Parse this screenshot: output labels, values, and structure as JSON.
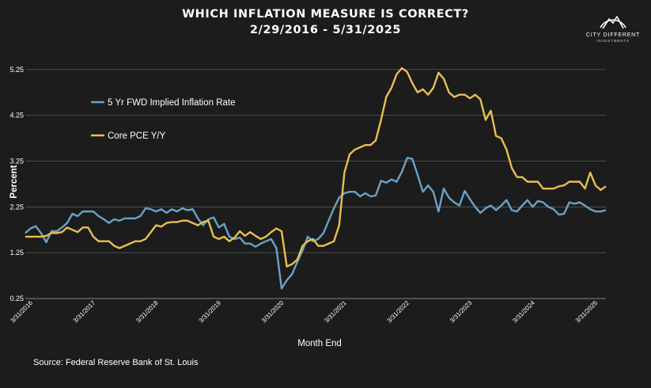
{
  "title": "WHICH INFLATION MEASURE IS CORRECT?",
  "subtitle": "2/29/2016 - 5/31/2025",
  "brand": {
    "name": "CITY DIFFERENT",
    "tagline": "INVESTMENTS"
  },
  "source": "Source: Federal Reserve Bank of St. Louis",
  "colors": {
    "background": "#1c1c1c",
    "grid": "#5a5a5a",
    "series_blue": "#6aa2c8",
    "series_gold": "#e8c04e"
  },
  "chart_data": {
    "type": "line",
    "xlabel": "Month End",
    "ylabel": "Percent",
    "ylim": [
      0.25,
      5.35
    ],
    "yticks": [
      0.25,
      1.25,
      2.25,
      3.25,
      4.25,
      5.25
    ],
    "ytick_labels": [
      "0.25",
      "1.25",
      "2.25",
      "3.25",
      "4.25",
      "5.25"
    ],
    "x_start": "2016-02",
    "x_end": "2025-05",
    "xticks": [
      "2016-03",
      "2017-03",
      "2018-03",
      "2019-03",
      "2020-03",
      "2021-03",
      "2022-03",
      "2023-03",
      "2024-03",
      "2025-03"
    ],
    "xtick_labels": [
      "3/31/2016",
      "3/31/2017",
      "3/31/2018",
      "3/31/2019",
      "3/31/2020",
      "3/31/2021",
      "3/31/2022",
      "3/31/2023",
      "3/31/2024",
      "3/31/2025"
    ],
    "grid": "horizontal",
    "legend_position": "upper-left",
    "series": [
      {
        "name": "5 Yr FWD Implied Inflation Rate",
        "color": "#6aa2c8",
        "points": [
          [
            "2016-02",
            1.68
          ],
          [
            "2016-03",
            1.78
          ],
          [
            "2016-04",
            1.83
          ],
          [
            "2016-05",
            1.68
          ],
          [
            "2016-06",
            1.48
          ],
          [
            "2016-07",
            1.72
          ],
          [
            "2016-08",
            1.72
          ],
          [
            "2016-09",
            1.8
          ],
          [
            "2016-10",
            1.9
          ],
          [
            "2016-11",
            2.1
          ],
          [
            "2016-12",
            2.05
          ],
          [
            "2017-01",
            2.15
          ],
          [
            "2017-02",
            2.15
          ],
          [
            "2017-03",
            2.15
          ],
          [
            "2017-04",
            2.05
          ],
          [
            "2017-05",
            1.98
          ],
          [
            "2017-06",
            1.9
          ],
          [
            "2017-07",
            1.98
          ],
          [
            "2017-08",
            1.95
          ],
          [
            "2017-09",
            2.0
          ],
          [
            "2017-10",
            2.0
          ],
          [
            "2017-11",
            2.0
          ],
          [
            "2017-12",
            2.05
          ],
          [
            "2018-01",
            2.22
          ],
          [
            "2018-02",
            2.2
          ],
          [
            "2018-03",
            2.15
          ],
          [
            "2018-04",
            2.2
          ],
          [
            "2018-05",
            2.12
          ],
          [
            "2018-06",
            2.2
          ],
          [
            "2018-07",
            2.15
          ],
          [
            "2018-08",
            2.22
          ],
          [
            "2018-09",
            2.18
          ],
          [
            "2018-10",
            2.2
          ],
          [
            "2018-11",
            2.0
          ],
          [
            "2018-12",
            1.85
          ],
          [
            "2019-01",
            1.98
          ],
          [
            "2019-02",
            2.02
          ],
          [
            "2019-03",
            1.8
          ],
          [
            "2019-04",
            1.88
          ],
          [
            "2019-05",
            1.6
          ],
          [
            "2019-06",
            1.55
          ],
          [
            "2019-07",
            1.58
          ],
          [
            "2019-08",
            1.45
          ],
          [
            "2019-09",
            1.45
          ],
          [
            "2019-10",
            1.38
          ],
          [
            "2019-11",
            1.45
          ],
          [
            "2019-12",
            1.5
          ],
          [
            "2020-01",
            1.55
          ],
          [
            "2020-02",
            1.35
          ],
          [
            "2020-03",
            0.47
          ],
          [
            "2020-04",
            0.65
          ],
          [
            "2020-05",
            0.78
          ],
          [
            "2020-06",
            1.05
          ],
          [
            "2020-07",
            1.3
          ],
          [
            "2020-08",
            1.6
          ],
          [
            "2020-09",
            1.5
          ],
          [
            "2020-10",
            1.55
          ],
          [
            "2020-11",
            1.68
          ],
          [
            "2020-12",
            1.95
          ],
          [
            "2021-01",
            2.22
          ],
          [
            "2021-02",
            2.45
          ],
          [
            "2021-03",
            2.55
          ],
          [
            "2021-04",
            2.58
          ],
          [
            "2021-05",
            2.58
          ],
          [
            "2021-06",
            2.48
          ],
          [
            "2021-07",
            2.55
          ],
          [
            "2021-08",
            2.48
          ],
          [
            "2021-09",
            2.5
          ],
          [
            "2021-10",
            2.82
          ],
          [
            "2021-11",
            2.78
          ],
          [
            "2021-12",
            2.85
          ],
          [
            "2022-01",
            2.8
          ],
          [
            "2022-02",
            3.02
          ],
          [
            "2022-03",
            3.32
          ],
          [
            "2022-04",
            3.3
          ],
          [
            "2022-05",
            2.95
          ],
          [
            "2022-06",
            2.58
          ],
          [
            "2022-07",
            2.72
          ],
          [
            "2022-08",
            2.58
          ],
          [
            "2022-09",
            2.15
          ],
          [
            "2022-10",
            2.65
          ],
          [
            "2022-11",
            2.45
          ],
          [
            "2022-12",
            2.35
          ],
          [
            "2023-01",
            2.28
          ],
          [
            "2023-02",
            2.6
          ],
          [
            "2023-03",
            2.42
          ],
          [
            "2023-04",
            2.25
          ],
          [
            "2023-05",
            2.12
          ],
          [
            "2023-06",
            2.22
          ],
          [
            "2023-07",
            2.28
          ],
          [
            "2023-08",
            2.18
          ],
          [
            "2023-09",
            2.28
          ],
          [
            "2023-10",
            2.4
          ],
          [
            "2023-11",
            2.18
          ],
          [
            "2023-12",
            2.15
          ],
          [
            "2024-01",
            2.28
          ],
          [
            "2024-02",
            2.4
          ],
          [
            "2024-03",
            2.25
          ],
          [
            "2024-04",
            2.38
          ],
          [
            "2024-05",
            2.35
          ],
          [
            "2024-06",
            2.25
          ],
          [
            "2024-07",
            2.2
          ],
          [
            "2024-08",
            2.08
          ],
          [
            "2024-09",
            2.1
          ],
          [
            "2024-10",
            2.35
          ],
          [
            "2024-11",
            2.32
          ],
          [
            "2024-12",
            2.35
          ],
          [
            "2025-01",
            2.28
          ],
          [
            "2025-02",
            2.2
          ],
          [
            "2025-03",
            2.15
          ],
          [
            "2025-04",
            2.15
          ],
          [
            "2025-05",
            2.18
          ]
        ]
      },
      {
        "name": "Core PCE Y/Y",
        "color": "#e8c04e",
        "points": [
          [
            "2016-02",
            1.6
          ],
          [
            "2016-03",
            1.6
          ],
          [
            "2016-04",
            1.6
          ],
          [
            "2016-05",
            1.6
          ],
          [
            "2016-06",
            1.62
          ],
          [
            "2016-07",
            1.68
          ],
          [
            "2016-08",
            1.68
          ],
          [
            "2016-09",
            1.7
          ],
          [
            "2016-10",
            1.8
          ],
          [
            "2016-11",
            1.75
          ],
          [
            "2016-12",
            1.7
          ],
          [
            "2017-01",
            1.8
          ],
          [
            "2017-02",
            1.8
          ],
          [
            "2017-03",
            1.6
          ],
          [
            "2017-04",
            1.5
          ],
          [
            "2017-05",
            1.5
          ],
          [
            "2017-06",
            1.5
          ],
          [
            "2017-07",
            1.4
          ],
          [
            "2017-08",
            1.35
          ],
          [
            "2017-09",
            1.4
          ],
          [
            "2017-10",
            1.45
          ],
          [
            "2017-11",
            1.5
          ],
          [
            "2017-12",
            1.5
          ],
          [
            "2018-01",
            1.55
          ],
          [
            "2018-02",
            1.7
          ],
          [
            "2018-03",
            1.85
          ],
          [
            "2018-04",
            1.82
          ],
          [
            "2018-05",
            1.9
          ],
          [
            "2018-06",
            1.92
          ],
          [
            "2018-07",
            1.92
          ],
          [
            "2018-08",
            1.95
          ],
          [
            "2018-09",
            1.95
          ],
          [
            "2018-10",
            1.9
          ],
          [
            "2018-11",
            1.85
          ],
          [
            "2018-12",
            1.92
          ],
          [
            "2019-01",
            1.95
          ],
          [
            "2019-02",
            1.6
          ],
          [
            "2019-03",
            1.55
          ],
          [
            "2019-04",
            1.6
          ],
          [
            "2019-05",
            1.5
          ],
          [
            "2019-06",
            1.58
          ],
          [
            "2019-07",
            1.72
          ],
          [
            "2019-08",
            1.62
          ],
          [
            "2019-09",
            1.7
          ],
          [
            "2019-10",
            1.62
          ],
          [
            "2019-11",
            1.55
          ],
          [
            "2019-12",
            1.6
          ],
          [
            "2020-01",
            1.7
          ],
          [
            "2020-02",
            1.78
          ],
          [
            "2020-03",
            1.72
          ],
          [
            "2020-04",
            0.95
          ],
          [
            "2020-05",
            1.0
          ],
          [
            "2020-06",
            1.1
          ],
          [
            "2020-07",
            1.4
          ],
          [
            "2020-08",
            1.5
          ],
          [
            "2020-09",
            1.55
          ],
          [
            "2020-10",
            1.4
          ],
          [
            "2020-11",
            1.4
          ],
          [
            "2020-12",
            1.45
          ],
          [
            "2021-01",
            1.5
          ],
          [
            "2021-02",
            1.85
          ],
          [
            "2021-03",
            3.0
          ],
          [
            "2021-04",
            3.4
          ],
          [
            "2021-05",
            3.5
          ],
          [
            "2021-06",
            3.55
          ],
          [
            "2021-07",
            3.6
          ],
          [
            "2021-08",
            3.6
          ],
          [
            "2021-09",
            3.7
          ],
          [
            "2021-10",
            4.15
          ],
          [
            "2021-11",
            4.65
          ],
          [
            "2021-12",
            4.85
          ],
          [
            "2022-01",
            5.15
          ],
          [
            "2022-02",
            5.28
          ],
          [
            "2022-03",
            5.2
          ],
          [
            "2022-04",
            4.95
          ],
          [
            "2022-05",
            4.75
          ],
          [
            "2022-06",
            4.82
          ],
          [
            "2022-07",
            4.7
          ],
          [
            "2022-08",
            4.85
          ],
          [
            "2022-09",
            5.18
          ],
          [
            "2022-10",
            5.05
          ],
          [
            "2022-11",
            4.75
          ],
          [
            "2022-12",
            4.65
          ],
          [
            "2023-01",
            4.7
          ],
          [
            "2023-02",
            4.7
          ],
          [
            "2023-03",
            4.62
          ],
          [
            "2023-04",
            4.7
          ],
          [
            "2023-05",
            4.6
          ],
          [
            "2023-06",
            4.15
          ],
          [
            "2023-07",
            4.35
          ],
          [
            "2023-08",
            3.8
          ],
          [
            "2023-09",
            3.75
          ],
          [
            "2023-10",
            3.5
          ],
          [
            "2023-11",
            3.1
          ],
          [
            "2023-12",
            2.9
          ],
          [
            "2024-01",
            2.9
          ],
          [
            "2024-02",
            2.8
          ],
          [
            "2024-03",
            2.8
          ],
          [
            "2024-04",
            2.8
          ],
          [
            "2024-05",
            2.65
          ],
          [
            "2024-06",
            2.65
          ],
          [
            "2024-07",
            2.65
          ],
          [
            "2024-08",
            2.7
          ],
          [
            "2024-09",
            2.72
          ],
          [
            "2024-10",
            2.8
          ],
          [
            "2024-11",
            2.8
          ],
          [
            "2024-12",
            2.8
          ],
          [
            "2025-01",
            2.65
          ],
          [
            "2025-02",
            3.0
          ],
          [
            "2025-03",
            2.72
          ],
          [
            "2025-04",
            2.62
          ],
          [
            "2025-05",
            2.7
          ]
        ]
      }
    ]
  }
}
